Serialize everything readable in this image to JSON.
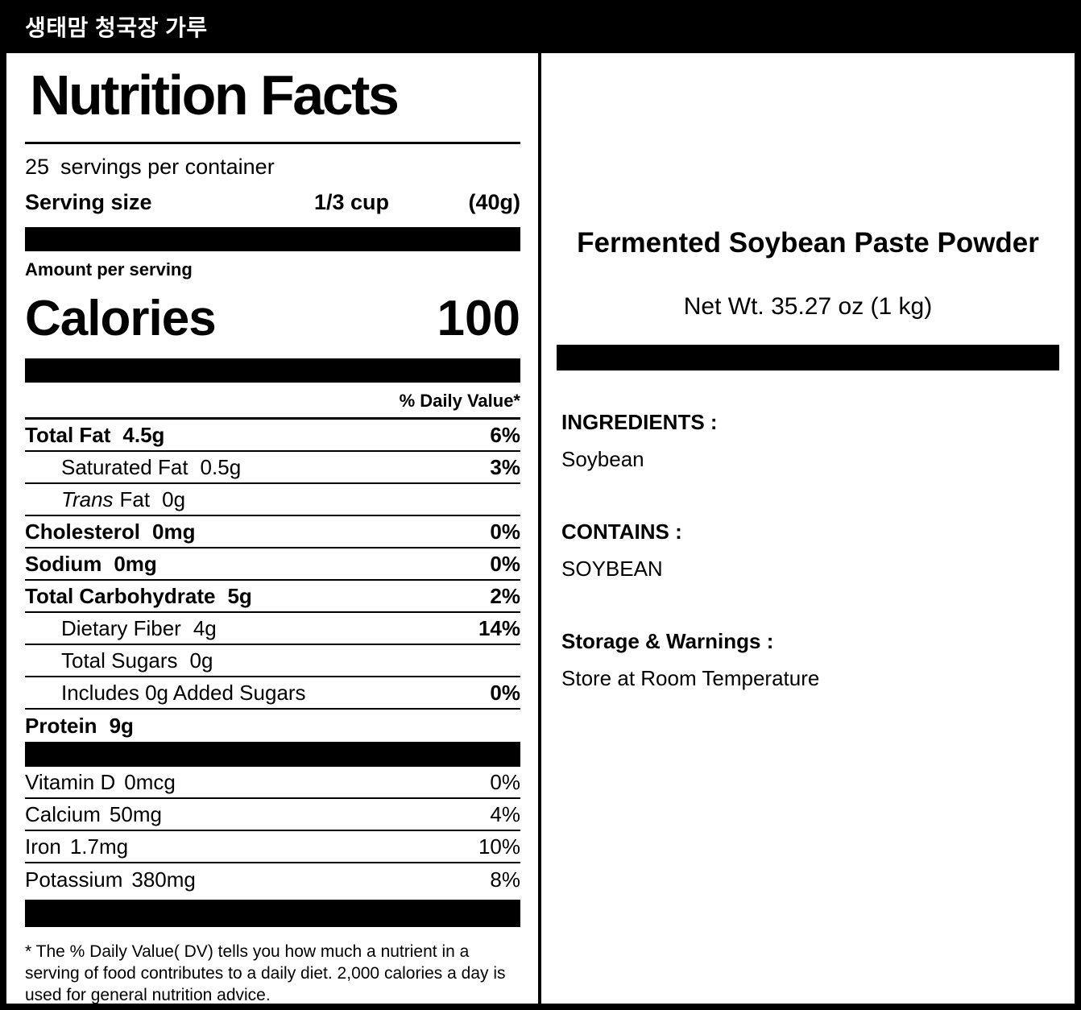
{
  "header": {
    "korean_title": "생태맘 청국장 가루"
  },
  "nutrition": {
    "title": "Nutrition Facts",
    "servings_count": "25",
    "servings_text": "servings per container",
    "serving_size_label": "Serving size",
    "serving_size_value": "1/3 cup",
    "serving_size_weight": "(40g)",
    "amount_per_serving": "Amount per serving",
    "calories_label": "Calories",
    "calories_value": "100",
    "daily_value_header": "% Daily Value*",
    "rows": [
      {
        "name": "Total Fat",
        "amount": "4.5g",
        "dv": "6%"
      },
      {
        "name": "Saturated Fat",
        "amount": "0.5g",
        "dv": "3%"
      },
      {
        "name_italic": "Trans",
        "name": "Fat",
        "amount": "0g",
        "dv": ""
      },
      {
        "name": "Cholesterol",
        "amount": "0mg",
        "dv": "0%"
      },
      {
        "name": "Sodium",
        "amount": "0mg",
        "dv": "0%"
      },
      {
        "name": "Total Carbohydrate",
        "amount": "5g",
        "dv": "2%"
      },
      {
        "name": "Dietary Fiber",
        "amount": "4g",
        "dv": "14%"
      },
      {
        "name": "Total Sugars",
        "amount": "0g",
        "dv": ""
      },
      {
        "name": "Includes 0g Added Sugars",
        "amount": "",
        "dv": "0%"
      },
      {
        "name": "Protein",
        "amount": "9g",
        "dv": ""
      }
    ],
    "vitamins": [
      {
        "name": "Vitamin D",
        "amount": "0mcg",
        "dv": "0%"
      },
      {
        "name": "Calcium",
        "amount": "50mg",
        "dv": "4%"
      },
      {
        "name": "Iron",
        "amount": "1.7mg",
        "dv": "10%"
      },
      {
        "name": "Potassium",
        "amount": "380mg",
        "dv": "8%"
      }
    ],
    "footnote": "* The % Daily Value( DV) tells you how much a nutrient in a serving of food contributes to a daily diet. 2,000 calories a day is used for general nutrition advice."
  },
  "product": {
    "name": "Fermented Soybean Paste Powder",
    "net_weight": "Net Wt. 35.27 oz (1 kg)",
    "ingredients_label": "INGREDIENTS :",
    "ingredients_value": "Soybean",
    "contains_label": "CONTAINS :",
    "contains_value": "SOYBEAN",
    "storage_label": "Storage & Warnings :",
    "storage_value": "Store at Room Temperature"
  }
}
